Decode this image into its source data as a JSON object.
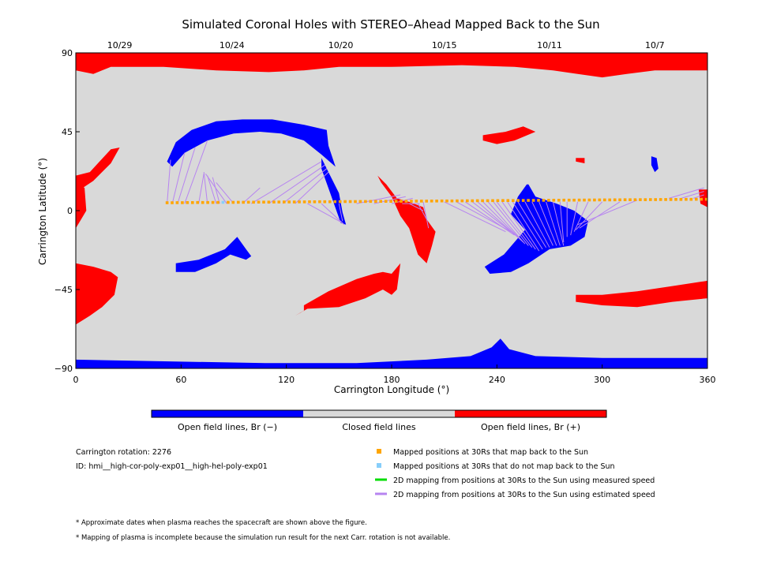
{
  "colors": {
    "closed": "#d9d9d9",
    "open_neg": "#0000ff",
    "open_pos": "#ff0000",
    "mapped_back": "#ffa500",
    "mapped_not_back": "#87cefa",
    "measured_line": "#00dd00",
    "estimated_line": "#b784f0"
  },
  "chart_data": {
    "type": "map",
    "title": "Simulated Coronal Holes with STEREO–Ahead Mapped Back to the Sun",
    "xlabel": "Carrington Longitude (°)",
    "ylabel": "Carrington Latitude (°)",
    "xlim": [
      0,
      360
    ],
    "ylim": [
      -90,
      90
    ],
    "xticks": [
      0,
      60,
      120,
      180,
      240,
      300,
      360
    ],
    "yticks": [
      -90,
      -45,
      0,
      45,
      90
    ],
    "ytick_labels": [
      "−90",
      "−45",
      "0",
      "45",
      "90"
    ],
    "top_dates": [
      {
        "lon": 25,
        "label": "10/29"
      },
      {
        "lon": 89,
        "label": "10/24"
      },
      {
        "lon": 151,
        "label": "10/20"
      },
      {
        "lon": 210,
        "label": "10/15"
      },
      {
        "lon": 270,
        "label": "10/11"
      },
      {
        "lon": 330,
        "label": "10/7"
      }
    ],
    "colorbar_labels": [
      "Open field lines, Br (−)",
      "Closed field lines",
      "Open field lines, Br (+)"
    ],
    "regions": [
      {
        "polarity": "pos",
        "points": [
          [
            0,
            90
          ],
          [
            360,
            90
          ],
          [
            360,
            80
          ],
          [
            330,
            80
          ],
          [
            314,
            78
          ],
          [
            300,
            76
          ],
          [
            286,
            78
          ],
          [
            272,
            80
          ],
          [
            250,
            82
          ],
          [
            220,
            83
          ],
          [
            180,
            82
          ],
          [
            150,
            82
          ],
          [
            130,
            80
          ],
          [
            110,
            79
          ],
          [
            80,
            80
          ],
          [
            50,
            82
          ],
          [
            20,
            82
          ],
          [
            10,
            78
          ],
          [
            0,
            80
          ]
        ]
      },
      {
        "polarity": "neg",
        "points": [
          [
            0,
            -85
          ],
          [
            108,
            -87
          ],
          [
            160,
            -87
          ],
          [
            200,
            -85
          ],
          [
            225,
            -83
          ],
          [
            237,
            -78
          ],
          [
            242,
            -73
          ],
          [
            247,
            -79
          ],
          [
            262,
            -83
          ],
          [
            300,
            -84
          ],
          [
            330,
            -84
          ],
          [
            360,
            -84
          ],
          [
            360,
            -90
          ],
          [
            0,
            -90
          ]
        ]
      },
      {
        "polarity": "neg",
        "points": [
          [
            52,
            28
          ],
          [
            57,
            39
          ],
          [
            66,
            46
          ],
          [
            80,
            51
          ],
          [
            95,
            52
          ],
          [
            112,
            52
          ],
          [
            130,
            49
          ],
          [
            143,
            46
          ],
          [
            144,
            37
          ],
          [
            148,
            25
          ],
          [
            140,
            32
          ],
          [
            130,
            40
          ],
          [
            117,
            44
          ],
          [
            105,
            45
          ],
          [
            90,
            44
          ],
          [
            75,
            40
          ],
          [
            62,
            33
          ],
          [
            55,
            25
          ]
        ]
      },
      {
        "polarity": "neg",
        "points": [
          [
            140,
            30
          ],
          [
            145,
            20
          ],
          [
            150,
            10
          ],
          [
            152,
            -1
          ],
          [
            154,
            -8
          ],
          [
            151,
            -7
          ],
          [
            145,
            10
          ],
          [
            140,
            24
          ]
        ]
      },
      {
        "polarity": "neg",
        "points": [
          [
            57,
            -30
          ],
          [
            70,
            -28
          ],
          [
            85,
            -22
          ],
          [
            92,
            -15
          ],
          [
            97,
            -22
          ],
          [
            100,
            -26
          ],
          [
            97,
            -28
          ],
          [
            88,
            -25
          ],
          [
            80,
            -30
          ],
          [
            68,
            -35
          ],
          [
            57,
            -35
          ]
        ]
      },
      {
        "polarity": "neg",
        "points": [
          [
            257,
            15
          ],
          [
            252,
            8
          ],
          [
            248,
            -2
          ],
          [
            256,
            -11
          ],
          [
            244,
            -25
          ],
          [
            233,
            -32
          ],
          [
            236,
            -36
          ],
          [
            248,
            -35
          ],
          [
            258,
            -30
          ],
          [
            270,
            -22
          ],
          [
            282,
            -20
          ],
          [
            290,
            -15
          ],
          [
            292,
            -6
          ],
          [
            284,
            0
          ],
          [
            274,
            4
          ],
          [
            262,
            8
          ],
          [
            258,
            15
          ]
        ]
      },
      {
        "polarity": "neg",
        "points": [
          [
            328,
            31
          ],
          [
            331,
            30
          ],
          [
            332,
            24
          ],
          [
            330,
            22
          ],
          [
            328,
            26
          ]
        ]
      },
      {
        "polarity": "pos",
        "points": [
          [
            0,
            20
          ],
          [
            8,
            22
          ],
          [
            20,
            35
          ],
          [
            25,
            36
          ],
          [
            20,
            27
          ],
          [
            10,
            17
          ],
          [
            4,
            13
          ],
          [
            0,
            15
          ]
        ]
      },
      {
        "polarity": "pos",
        "points": [
          [
            0,
            16
          ],
          [
            5,
            13
          ],
          [
            6,
            0
          ],
          [
            3,
            -5
          ],
          [
            0,
            -10
          ]
        ]
      },
      {
        "polarity": "pos",
        "points": [
          [
            0,
            -30
          ],
          [
            10,
            -32
          ],
          [
            20,
            -35
          ],
          [
            24,
            -38
          ],
          [
            22,
            -48
          ],
          [
            15,
            -55
          ],
          [
            8,
            -60
          ],
          [
            0,
            -65
          ]
        ]
      },
      {
        "polarity": "pos",
        "points": [
          [
            130,
            -54
          ],
          [
            144,
            -46
          ],
          [
            160,
            -39
          ],
          [
            170,
            -36
          ],
          [
            175,
            -35
          ],
          [
            180,
            -36
          ],
          [
            185,
            -30
          ],
          [
            183,
            -45
          ],
          [
            180,
            -48
          ],
          [
            175,
            -45
          ],
          [
            165,
            -50
          ],
          [
            150,
            -55
          ],
          [
            132,
            -56
          ],
          [
            125,
            -60
          ],
          [
            130,
            -57
          ]
        ]
      },
      {
        "polarity": "pos",
        "points": [
          [
            172,
            20
          ],
          [
            177,
            15
          ],
          [
            183,
            7
          ],
          [
            190,
            5
          ],
          [
            198,
            2
          ],
          [
            200,
            -5
          ],
          [
            205,
            -12
          ],
          [
            203,
            -20
          ],
          [
            200,
            -30
          ],
          [
            195,
            -25
          ],
          [
            190,
            -10
          ],
          [
            185,
            -3
          ],
          [
            180,
            8
          ],
          [
            174,
            16
          ]
        ]
      },
      {
        "polarity": "pos",
        "points": [
          [
            232,
            43
          ],
          [
            245,
            45
          ],
          [
            255,
            48
          ],
          [
            262,
            45
          ],
          [
            250,
            40
          ],
          [
            240,
            38
          ],
          [
            232,
            40
          ]
        ]
      },
      {
        "polarity": "pos",
        "points": [
          [
            285,
            -48
          ],
          [
            300,
            -48
          ],
          [
            320,
            -46
          ],
          [
            340,
            -43
          ],
          [
            360,
            -40
          ],
          [
            360,
            -50
          ],
          [
            340,
            -52
          ],
          [
            320,
            -55
          ],
          [
            300,
            -54
          ],
          [
            285,
            -52
          ]
        ]
      },
      {
        "polarity": "pos",
        "points": [
          [
            355,
            12
          ],
          [
            360,
            12
          ],
          [
            360,
            2
          ],
          [
            356,
            4
          ]
        ]
      },
      {
        "polarity": "pos",
        "points": [
          [
            285,
            30
          ],
          [
            290,
            30
          ],
          [
            290,
            27
          ],
          [
            285,
            28
          ]
        ]
      }
    ],
    "mapped_points": {
      "lon_start": 52,
      "lon_end": 360,
      "lon_step": 2.9,
      "lat_start": 4.5,
      "lat_end": 6.5,
      "not_mapped_lons": [
        85
      ]
    },
    "estimated_lines": [
      [
        [
          52,
          4
        ],
        [
          54,
          29
        ]
      ],
      [
        [
          55,
          4
        ],
        [
          62,
          33
        ]
      ],
      [
        [
          58,
          4
        ],
        [
          68,
          36
        ]
      ],
      [
        [
          62,
          4
        ],
        [
          75,
          40
        ]
      ],
      [
        [
          70,
          4
        ],
        [
          73,
          21
        ]
      ],
      [
        [
          75,
          4
        ],
        [
          73,
          22
        ]
      ],
      [
        [
          80,
          4
        ],
        [
          75,
          20
        ]
      ],
      [
        [
          82,
          4
        ],
        [
          78,
          19
        ]
      ],
      [
        [
          86,
          4
        ],
        [
          74,
          21
        ]
      ],
      [
        [
          90,
          4
        ],
        [
          80,
          16
        ]
      ],
      [
        [
          95,
          4
        ],
        [
          105,
          13
        ]
      ],
      [
        [
          100,
          4
        ],
        [
          140,
          28
        ]
      ],
      [
        [
          110,
          4
        ],
        [
          142,
          26
        ]
      ],
      [
        [
          118,
          4
        ],
        [
          143,
          24
        ]
      ],
      [
        [
          125,
          4
        ],
        [
          144,
          22
        ]
      ],
      [
        [
          132,
          4
        ],
        [
          152,
          -7
        ]
      ],
      [
        [
          140,
          4
        ],
        [
          153,
          -8
        ]
      ],
      [
        [
          150,
          4
        ],
        [
          152,
          -6
        ]
      ],
      [
        [
          160,
          4
        ],
        [
          185,
          9
        ]
      ],
      [
        [
          170,
          4
        ],
        [
          188,
          8
        ]
      ],
      [
        [
          180,
          4
        ],
        [
          192,
          7
        ]
      ],
      [
        [
          186,
          4
        ],
        [
          196,
          4
        ]
      ],
      [
        [
          190,
          4
        ],
        [
          198,
          0
        ]
      ],
      [
        [
          195,
          4
        ],
        [
          200,
          -5
        ]
      ],
      [
        [
          198,
          5
        ],
        [
          201,
          -10
        ]
      ],
      [
        [
          210,
          5
        ],
        [
          245,
          -12
        ]
      ],
      [
        [
          217,
          5
        ],
        [
          248,
          -12
        ]
      ],
      [
        [
          222,
          5
        ],
        [
          250,
          -14
        ]
      ],
      [
        [
          226,
          5
        ],
        [
          252,
          -15
        ]
      ],
      [
        [
          229,
          5
        ],
        [
          254,
          -17
        ]
      ],
      [
        [
          232,
          5
        ],
        [
          255,
          -18
        ]
      ],
      [
        [
          235,
          5
        ],
        [
          256,
          -19
        ]
      ],
      [
        [
          238,
          5
        ],
        [
          258,
          -20
        ]
      ],
      [
        [
          240,
          5
        ],
        [
          260,
          -21
        ]
      ],
      [
        [
          243,
          5
        ],
        [
          262,
          -22
        ]
      ],
      [
        [
          246,
          5
        ],
        [
          264,
          -23
        ]
      ],
      [
        [
          249,
          5
        ],
        [
          266,
          -22
        ]
      ],
      [
        [
          252,
          5
        ],
        [
          268,
          -21
        ]
      ],
      [
        [
          256,
          5
        ],
        [
          270,
          -21
        ]
      ],
      [
        [
          260,
          5
        ],
        [
          272,
          -20
        ]
      ],
      [
        [
          264,
          5
        ],
        [
          274,
          -20
        ]
      ],
      [
        [
          268,
          5
        ],
        [
          276,
          -20
        ]
      ],
      [
        [
          272,
          5
        ],
        [
          278,
          -20
        ]
      ],
      [
        [
          276,
          5
        ],
        [
          278,
          -18
        ]
      ],
      [
        [
          280,
          5
        ],
        [
          280,
          -15
        ]
      ],
      [
        [
          286,
          5
        ],
        [
          282,
          -14
        ]
      ],
      [
        [
          292,
          5
        ],
        [
          284,
          -12
        ]
      ],
      [
        [
          300,
          5
        ],
        [
          285,
          -11
        ]
      ],
      [
        [
          310,
          5
        ],
        [
          287,
          -10
        ]
      ],
      [
        [
          320,
          6
        ],
        [
          286,
          -8
        ]
      ],
      [
        [
          338,
          7
        ],
        [
          358,
          13
        ]
      ],
      [
        [
          345,
          7
        ],
        [
          358,
          11
        ]
      ],
      [
        [
          352,
          7
        ],
        [
          358,
          9
        ]
      ]
    ]
  },
  "legend": {
    "items": [
      {
        "label": "Mapped positions at 30Rs that map back to the Sun",
        "kind": "square",
        "color": "#ffa500"
      },
      {
        "label": "Mapped positions at 30Rs that do not map back to the Sun",
        "kind": "square",
        "color": "#87cefa"
      },
      {
        "label": "2D mapping from positions at 30Rs to the Sun using measured speed",
        "kind": "line",
        "color": "#00dd00"
      },
      {
        "label": "2D mapping from positions at 30Rs to the Sun using estimated speed",
        "kind": "line",
        "color": "#b784f0"
      }
    ]
  },
  "info": {
    "rotation": "Carrington rotation: 2276",
    "id": "ID: hmi__high-cor-poly-exp01__high-hel-poly-exp01"
  },
  "footnotes": [
    "* Approximate dates when plasma reaches the spacecraft are shown above the figure.",
    "* Mapping of plasma is incomplete because the simulation run result for the next Carr. rotation is not available."
  ]
}
